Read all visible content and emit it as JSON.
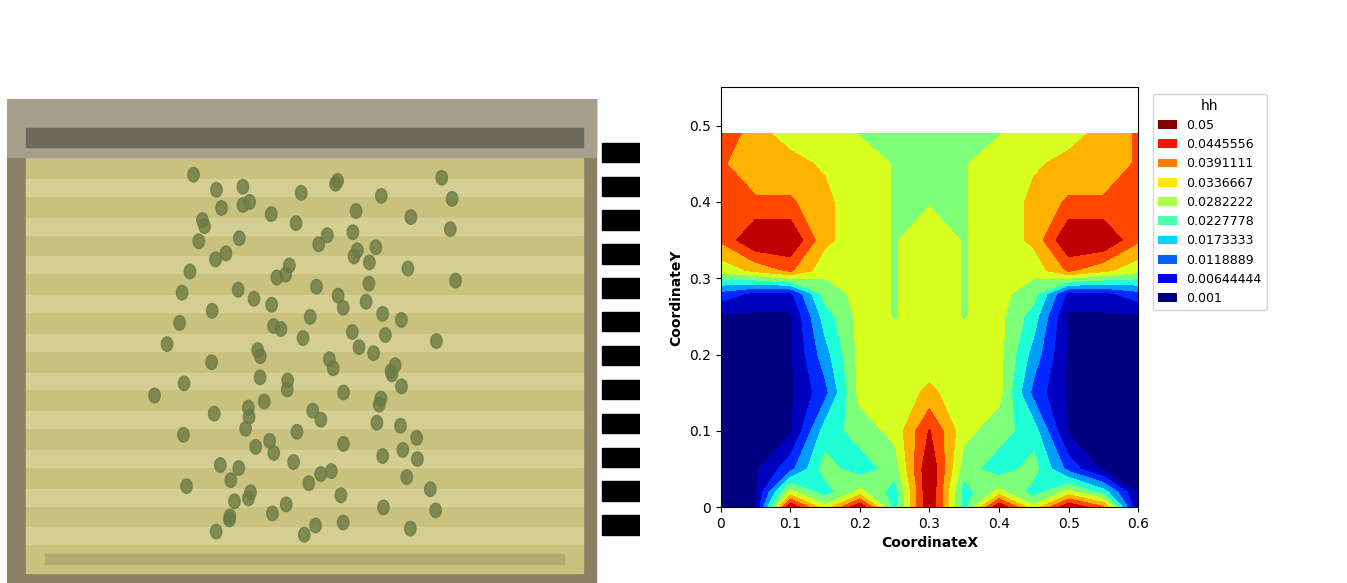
{
  "chart_data": {
    "type": "contour",
    "xlabel": "CoordinateX",
    "ylabel": "CoordinateY",
    "xlim": [
      0,
      0.6
    ],
    "ylim": [
      0,
      0.55
    ],
    "xticks": [
      0,
      0.1,
      0.2,
      0.3,
      0.4,
      0.5,
      0.6
    ],
    "yticks": [
      0,
      0.1,
      0.2,
      0.3,
      0.4,
      0.5
    ],
    "legend": "upper left",
    "legend_title": "hh",
    "colorbar_ticks": [
      0.05,
      0.0445556,
      0.0391111,
      0.0336667,
      0.0282222,
      0.0227778,
      0.0173333,
      0.0118889,
      0.00644444,
      0.001
    ],
    "x": [
      0,
      0.05,
      0.1,
      0.15,
      0.2,
      0.25,
      0.3,
      0.35,
      0.4,
      0.45,
      0.5,
      0.55,
      0.6
    ],
    "y": [
      0,
      0.02,
      0.05,
      0.1,
      0.15,
      0.2,
      0.25,
      0.28,
      0.31,
      0.35,
      0.4,
      0.45,
      0.49
    ],
    "cells": [
      [
        0,
        0,
        0.05,
        0.03,
        0.05,
        0.02,
        0.05,
        0.02,
        0.05,
        0.03,
        0.05,
        0.04,
        0
      ],
      [
        0,
        0,
        0.03,
        0.02,
        0.03,
        0.02,
        0.05,
        0.02,
        0.03,
        0.02,
        0.03,
        0.02,
        0
      ],
      [
        0,
        0,
        0.01,
        0.025,
        0.02,
        0.025,
        0.05,
        0.025,
        0.02,
        0.025,
        0.01,
        0,
        0
      ],
      [
        0,
        0,
        0,
        0.02,
        0.025,
        0.03,
        0.045,
        0.03,
        0.025,
        0.02,
        0,
        0,
        0
      ],
      [
        0,
        0,
        0,
        0.01,
        0.03,
        0.03,
        0.035,
        0.03,
        0.03,
        0.01,
        0,
        0,
        0
      ],
      [
        0,
        0,
        0,
        0.015,
        0.03,
        0.03,
        0.03,
        0.03,
        0.03,
        0.015,
        0,
        0,
        0
      ],
      [
        0,
        0,
        0,
        0.02,
        0.03,
        0.028,
        0.03,
        0.028,
        0.03,
        0.02,
        0,
        0,
        0
      ],
      [
        0.01,
        0.005,
        0.005,
        0.025,
        0.03,
        0.028,
        0.03,
        0.028,
        0.03,
        0.025,
        0.005,
        0.005,
        0.01
      ],
      [
        0.03,
        0.035,
        0.04,
        0.03,
        0.03,
        0.028,
        0.03,
        0.028,
        0.03,
        0.03,
        0.04,
        0.035,
        0.03
      ],
      [
        0.04,
        0.05,
        0.05,
        0.035,
        0.03,
        0.028,
        0.03,
        0.028,
        0.03,
        0.035,
        0.05,
        0.05,
        0.04
      ],
      [
        0.04,
        0.04,
        0.04,
        0.035,
        0.03,
        0.028,
        0.028,
        0.028,
        0.03,
        0.035,
        0.04,
        0.04,
        0.04
      ],
      [
        0.04,
        0.035,
        0.035,
        0.033,
        0.03,
        0.028,
        0.026,
        0.028,
        0.03,
        0.033,
        0.035,
        0.035,
        0.04
      ],
      [
        0.045,
        0.035,
        0.032,
        0.03,
        0.028,
        0.028,
        0.026,
        0.028,
        0.028,
        0.03,
        0.032,
        0.035,
        0.04
      ]
    ]
  }
}
